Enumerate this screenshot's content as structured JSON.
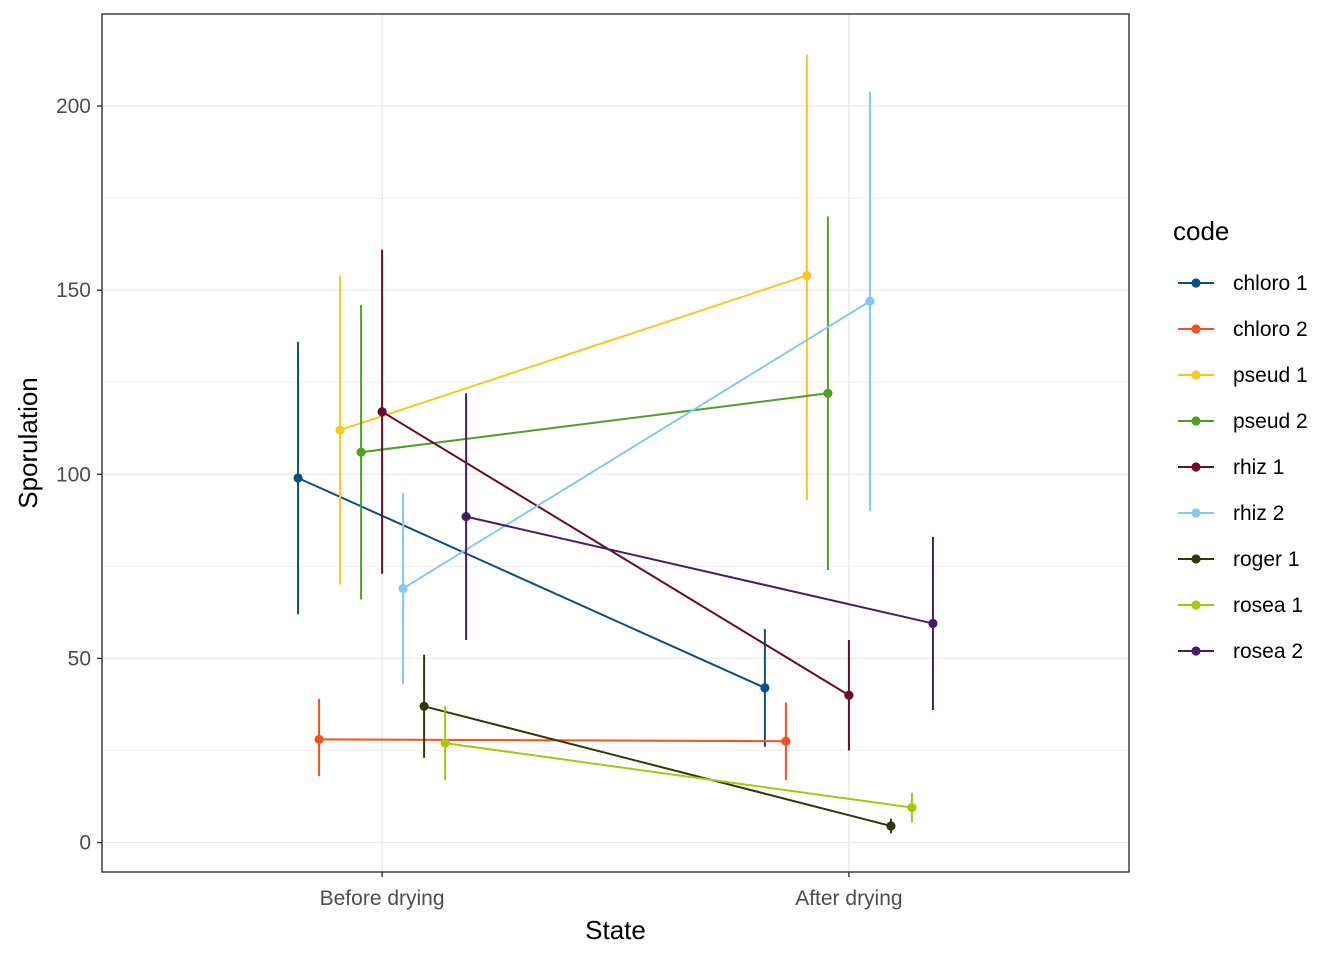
{
  "chart_data": {
    "type": "line",
    "xlabel": "State",
    "ylabel": "Sporulation",
    "categories": [
      "Before drying",
      "After drying"
    ],
    "ylim": [
      -8,
      225
    ],
    "yticks": [
      0,
      50,
      100,
      150,
      200
    ],
    "grid": true,
    "legend": {
      "title": "code",
      "position": "right"
    },
    "series": [
      {
        "name": "chloro 1",
        "color": "#0b4f8a",
        "dodge": -0.18,
        "values": [
          99,
          42
        ],
        "lower": [
          62,
          26
        ],
        "upper": [
          136,
          58
        ]
      },
      {
        "name": "chloro 2",
        "color": "#f4511e",
        "dodge": -0.135,
        "values": [
          28,
          27.5
        ],
        "lower": [
          18,
          17
        ],
        "upper": [
          39,
          38
        ]
      },
      {
        "name": "pseud 1",
        "color": "#f9c623",
        "dodge": -0.09,
        "values": [
          112,
          154
        ],
        "lower": [
          70,
          93
        ],
        "upper": [
          154,
          214
        ]
      },
      {
        "name": "pseud 2",
        "color": "#529e23",
        "dodge": -0.045,
        "values": [
          106,
          122
        ],
        "lower": [
          66,
          74
        ],
        "upper": [
          146,
          170
        ]
      },
      {
        "name": "rhiz 1",
        "color": "#6b0a2a",
        "dodge": 0.0,
        "values": [
          117,
          40
        ],
        "lower": [
          73,
          25
        ],
        "upper": [
          161,
          55
        ]
      },
      {
        "name": "rhiz 2",
        "color": "#82c9f5",
        "dodge": 0.045,
        "values": [
          69,
          147
        ],
        "lower": [
          43,
          90
        ],
        "upper": [
          95,
          204
        ]
      },
      {
        "name": "roger 1",
        "color": "#2f3a06",
        "dodge": 0.09,
        "values": [
          37,
          4.5
        ],
        "lower": [
          23,
          2.5
        ],
        "upper": [
          51,
          6.5
        ]
      },
      {
        "name": "rosea 1",
        "color": "#a8c70a",
        "dodge": 0.135,
        "values": [
          27,
          9.5
        ],
        "lower": [
          17,
          5.5
        ],
        "upper": [
          37,
          13.5
        ]
      },
      {
        "name": "rosea 2",
        "color": "#4a1a6e",
        "dodge": 0.18,
        "values": [
          88.5,
          59.5
        ],
        "lower": [
          55,
          36
        ],
        "upper": [
          122,
          83
        ]
      }
    ]
  }
}
